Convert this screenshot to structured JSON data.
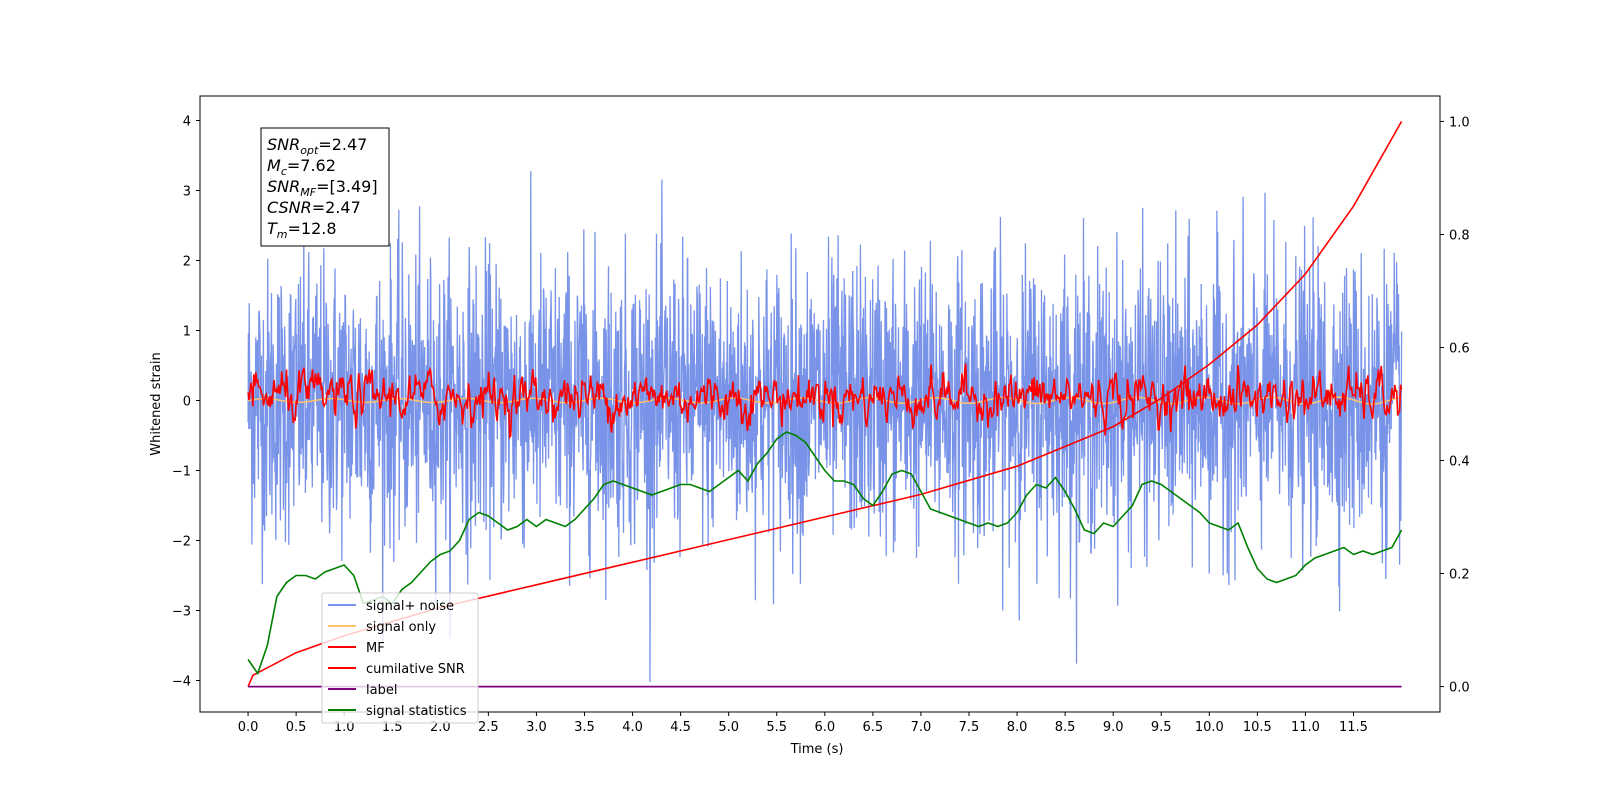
{
  "chart_data": {
    "type": "line",
    "xlabel": "Time (s)",
    "ylabel": "Whitened strain",
    "xlim": [
      -0.5,
      12.4
    ],
    "ylim": [
      -4.45,
      4.35
    ],
    "y2lim": [
      -0.045,
      1.045
    ],
    "xticks": [
      "0.0",
      "0.5",
      "1.0",
      "1.5",
      "2.0",
      "2.5",
      "3.0",
      "3.5",
      "4.0",
      "4.5",
      "5.0",
      "5.5",
      "6.0",
      "6.5",
      "7.0",
      "7.5",
      "8.0",
      "8.5",
      "9.0",
      "9.5",
      "10.0",
      "10.5",
      "11.0",
      "11.5"
    ],
    "yticks": [
      "4",
      "3",
      "2",
      "1",
      "0",
      "−1",
      "−2",
      "−3",
      "−4"
    ],
    "y2ticks": [
      "1.0",
      "0.8",
      "0.6",
      "0.4",
      "0.2",
      "0.0"
    ],
    "legend_position": "lower-left",
    "series": [
      {
        "name": "signal+ noise",
        "axis": "left",
        "color": "#7893e8",
        "x_range": [
          0,
          12.0
        ],
        "mean": 0.0,
        "std": 1.0,
        "samples": 3000
      },
      {
        "name": "signal only",
        "axis": "left",
        "color": "#ffc36e",
        "x_range": [
          0,
          12.0
        ],
        "amplitude": 0.05
      },
      {
        "name": "MF",
        "axis": "left",
        "color": "#ff0000",
        "x_range": [
          0,
          12.0
        ],
        "mean": 0.05,
        "std": 0.22
      },
      {
        "name": "cumilative SNR",
        "axis": "right",
        "color": "#ff0000",
        "x": [
          0.0,
          0.05,
          0.5,
          1.0,
          2.0,
          3.0,
          4.0,
          5.0,
          6.0,
          7.0,
          8.0,
          9.0,
          9.5,
          10.0,
          10.5,
          11.0,
          11.5,
          12.0
        ],
        "y": [
          0.0,
          0.02,
          0.06,
          0.09,
          0.14,
          0.18,
          0.22,
          0.26,
          0.3,
          0.34,
          0.39,
          0.46,
          0.51,
          0.57,
          0.64,
          0.73,
          0.85,
          1.0
        ]
      },
      {
        "name": "label",
        "axis": "right",
        "color": "#800080",
        "x": [
          0.0,
          12.0
        ],
        "y": [
          0.0,
          0.0
        ]
      },
      {
        "name": "signal statistics",
        "axis": "left",
        "color": "#008000",
        "x": [
          0.0,
          0.1,
          0.2,
          0.3,
          0.4,
          0.5,
          0.6,
          0.7,
          0.8,
          0.9,
          1.0,
          1.1,
          1.2,
          1.3,
          1.4,
          1.5,
          1.6,
          1.7,
          1.8,
          1.9,
          2.0,
          2.1,
          2.2,
          2.3,
          2.4,
          2.5,
          2.6,
          2.7,
          2.8,
          2.9,
          3.0,
          3.1,
          3.2,
          3.3,
          3.4,
          3.5,
          3.6,
          3.7,
          3.8,
          3.9,
          4.0,
          4.1,
          4.2,
          4.3,
          4.4,
          4.5,
          4.6,
          4.7,
          4.8,
          4.9,
          5.0,
          5.1,
          5.2,
          5.3,
          5.4,
          5.5,
          5.6,
          5.7,
          5.8,
          5.9,
          6.0,
          6.1,
          6.2,
          6.3,
          6.4,
          6.5,
          6.6,
          6.7,
          6.8,
          6.9,
          7.0,
          7.1,
          7.2,
          7.3,
          7.4,
          7.5,
          7.6,
          7.7,
          7.8,
          7.9,
          8.0,
          8.1,
          8.2,
          8.3,
          8.4,
          8.5,
          8.6,
          8.7,
          8.8,
          8.9,
          9.0,
          9.1,
          9.2,
          9.3,
          9.4,
          9.5,
          9.6,
          9.7,
          9.8,
          9.9,
          10.0,
          10.1,
          10.2,
          10.3,
          10.4,
          10.5,
          10.6,
          10.7,
          10.8,
          10.9,
          11.0,
          11.1,
          11.2,
          11.3,
          11.4,
          11.5,
          11.6,
          11.7,
          11.8,
          11.9,
          12.0
        ],
        "y": [
          -3.7,
          -3.9,
          -3.5,
          -2.8,
          -2.6,
          -2.5,
          -2.5,
          -2.55,
          -2.45,
          -2.4,
          -2.35,
          -2.5,
          -2.9,
          -2.85,
          -2.8,
          -2.9,
          -2.7,
          -2.6,
          -2.45,
          -2.3,
          -2.2,
          -2.15,
          -2.0,
          -1.7,
          -1.6,
          -1.65,
          -1.75,
          -1.85,
          -1.8,
          -1.7,
          -1.8,
          -1.7,
          -1.75,
          -1.8,
          -1.7,
          -1.55,
          -1.4,
          -1.2,
          -1.15,
          -1.2,
          -1.25,
          -1.3,
          -1.35,
          -1.3,
          -1.25,
          -1.2,
          -1.2,
          -1.25,
          -1.3,
          -1.2,
          -1.1,
          -1.0,
          -1.15,
          -0.9,
          -0.75,
          -0.55,
          -0.45,
          -0.5,
          -0.6,
          -0.8,
          -1.0,
          -1.15,
          -1.15,
          -1.2,
          -1.4,
          -1.5,
          -1.3,
          -1.05,
          -1.0,
          -1.05,
          -1.3,
          -1.55,
          -1.6,
          -1.65,
          -1.7,
          -1.75,
          -1.8,
          -1.75,
          -1.8,
          -1.75,
          -1.6,
          -1.35,
          -1.2,
          -1.25,
          -1.1,
          -1.3,
          -1.55,
          -1.85,
          -1.9,
          -1.75,
          -1.8,
          -1.65,
          -1.5,
          -1.2,
          -1.15,
          -1.2,
          -1.3,
          -1.4,
          -1.5,
          -1.6,
          -1.75,
          -1.8,
          -1.85,
          -1.75,
          -2.1,
          -2.4,
          -2.55,
          -2.6,
          -2.55,
          -2.5,
          -2.35,
          -2.25,
          -2.2,
          -2.15,
          -2.1,
          -2.2,
          -2.15,
          -2.2,
          -2.15,
          -2.1,
          -1.85
        ]
      }
    ],
    "info_box": [
      {
        "main": "SNR",
        "sub": "opt",
        "value": "=2.47"
      },
      {
        "main": "M",
        "sub": "c",
        "value": "=7.62"
      },
      {
        "main": "SNR",
        "sub": "MF",
        "value": "=[3.49]"
      },
      {
        "main": "CSNR",
        "sub": "",
        "value": "=2.47"
      },
      {
        "main": "T",
        "sub": "m",
        "value": "=12.8"
      }
    ]
  }
}
